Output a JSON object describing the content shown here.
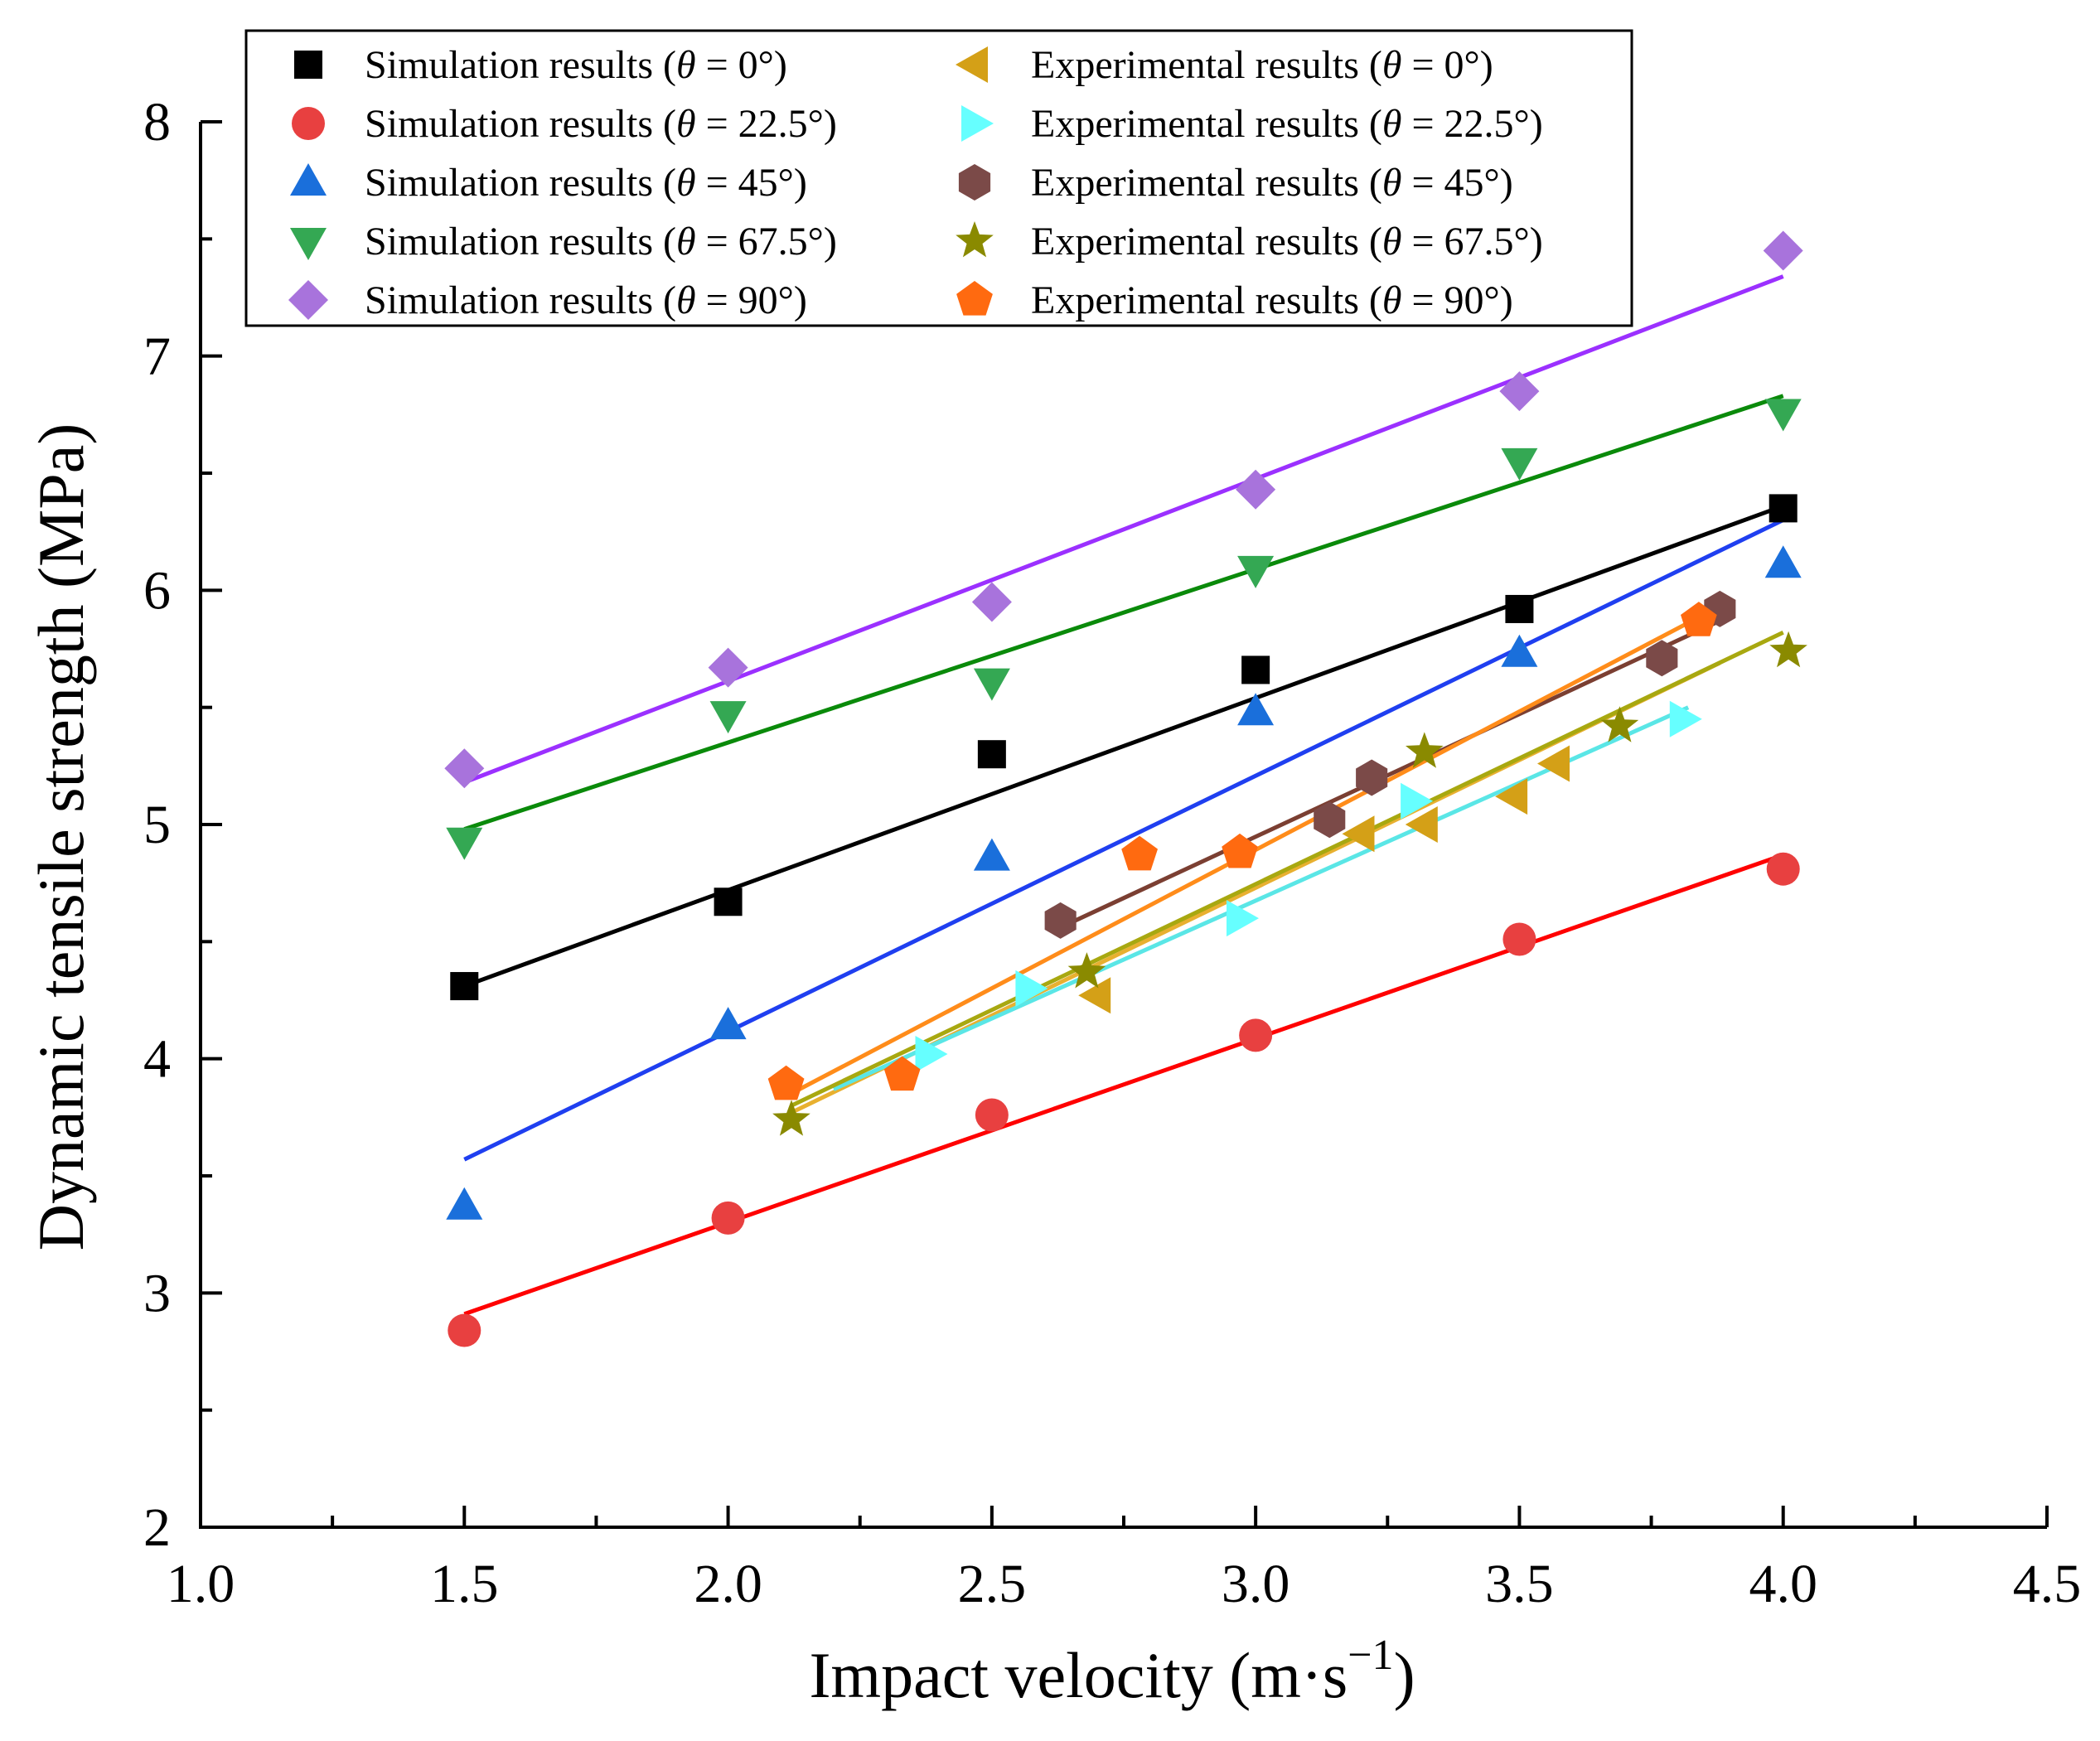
{
  "chart_data": {
    "type": "scatter",
    "xlabel": "Impact velocity (m·s",
    "xlabel_sup": "−1",
    "xlabel_close": ")",
    "ylabel": "Dynamic tensile strength (MPa)",
    "xlim": [
      1.0,
      4.5
    ],
    "ylim": [
      2,
      8
    ],
    "x_ticks": [
      "1.0",
      "1.5",
      "2.0",
      "2.5",
      "3.0",
      "3.5",
      "4.0",
      "4.5"
    ],
    "y_ticks": [
      "2",
      "3",
      "4",
      "5",
      "6",
      "7",
      "8"
    ],
    "legend_position": "top-left",
    "series": [
      {
        "name": "Simulation results (θ = 0°)",
        "prefix": "Simulation results (",
        "theta": "θ",
        "suffix": " = 0°)",
        "marker": "square",
        "color": "#000000",
        "fit_color": "#000000",
        "x": [
          1.5,
          2.0,
          2.5,
          3.0,
          3.5,
          4.0
        ],
        "y": [
          4.31,
          4.67,
          5.3,
          5.66,
          5.92,
          6.35
        ],
        "fit": [
          [
            1.5,
            4.31
          ],
          [
            4.0,
            6.36
          ]
        ]
      },
      {
        "name": "Simulation results (θ = 22.5°)",
        "prefix": "Simulation results (",
        "theta": "θ",
        "suffix": " = 22.5°)",
        "marker": "circle",
        "color": "#e84040",
        "fit_color": "#ff0000",
        "x": [
          1.5,
          2.0,
          2.5,
          3.0,
          3.5,
          4.0
        ],
        "y": [
          2.84,
          3.32,
          3.76,
          4.1,
          4.51,
          4.81
        ],
        "fit": [
          [
            1.5,
            2.91
          ],
          [
            4.0,
            4.87
          ]
        ]
      },
      {
        "name": "Simulation results (θ = 45°)",
        "prefix": "Simulation results (",
        "theta": "θ",
        "suffix": " = 45°)",
        "marker": "triangle-up",
        "color": "#1a6fdb",
        "fit_color": "#1f3ff0",
        "x": [
          1.5,
          2.0,
          2.5,
          3.0,
          3.5,
          4.0
        ],
        "y": [
          3.37,
          4.14,
          4.86,
          5.48,
          5.73,
          6.11
        ],
        "fit": [
          [
            1.5,
            3.57
          ],
          [
            4.0,
            6.3
          ]
        ]
      },
      {
        "name": "Simulation results (θ = 67.5°)",
        "prefix": "Simulation results (",
        "theta": "θ",
        "suffix": " = 67.5°)",
        "marker": "triangle-down",
        "color": "#34a853",
        "fit_color": "#0a8a0a",
        "x": [
          1.5,
          2.0,
          2.5,
          3.0,
          3.5,
          4.0
        ],
        "y": [
          4.93,
          5.47,
          5.61,
          6.09,
          6.55,
          6.76
        ],
        "fit": [
          [
            1.5,
            4.98
          ],
          [
            4.0,
            6.83
          ]
        ]
      },
      {
        "name": "Simulation results (θ = 90°)",
        "prefix": "Simulation results (",
        "theta": "θ",
        "suffix": " = 90°)",
        "marker": "diamond",
        "color": "#a873dc",
        "fit_color": "#9b30ff",
        "x": [
          1.5,
          2.0,
          2.5,
          3.0,
          3.5,
          4.0
        ],
        "y": [
          5.24,
          5.67,
          5.95,
          6.43,
          6.85,
          7.45
        ],
        "fit": [
          [
            1.5,
            5.18
          ],
          [
            4.0,
            7.34
          ]
        ]
      },
      {
        "name": "Experimental results (θ = 0°)",
        "prefix": "Experimental results (",
        "theta": "θ",
        "suffix": " = 0°)",
        "marker": "triangle-left",
        "color": "#d4a017",
        "fit_color": "#e8b030",
        "x": [
          2.7,
          3.2,
          3.32,
          3.49,
          3.57
        ],
        "y": [
          4.27,
          4.96,
          5.0,
          5.12,
          5.26
        ],
        "fit": [
          [
            2.12,
            3.77
          ],
          [
            3.88,
            5.69
          ]
        ]
      },
      {
        "name": "Experimental results (θ = 22.5°)",
        "prefix": "Experimental results (",
        "theta": "θ",
        "suffix": " = 22.5°)",
        "marker": "triangle-right",
        "color": "#66ffff",
        "fit_color": "#5ae6e6",
        "x": [
          2.38,
          2.57,
          2.97,
          3.3,
          3.81
        ],
        "y": [
          4.02,
          4.3,
          4.6,
          5.1,
          5.45
        ],
        "fit": [
          [
            2.2,
            3.87
          ],
          [
            3.82,
            5.5
          ]
        ]
      },
      {
        "name": "Experimental results (θ = 45°)",
        "prefix": "Experimental results (",
        "theta": "θ",
        "suffix": " = 45°)",
        "marker": "hexagon",
        "color": "#7b4a48",
        "fit_color": "#7b3f32",
        "x": [
          2.63,
          3.14,
          3.22,
          3.77,
          3.88
        ],
        "y": [
          4.59,
          5.02,
          5.2,
          5.71,
          5.92
        ],
        "fit": [
          [
            2.62,
            4.55
          ],
          [
            3.89,
            5.88
          ]
        ]
      },
      {
        "name": "Experimental results (θ = 67.5°)",
        "prefix": "Experimental results (",
        "theta": "θ",
        "suffix": " = 67.5°)",
        "marker": "star",
        "color": "#8a8a00",
        "fit_color": "#a8a810",
        "x": [
          2.12,
          2.68,
          3.32,
          3.69,
          4.01
        ],
        "y": [
          3.74,
          4.37,
          5.31,
          5.42,
          5.74
        ],
        "fit": [
          [
            2.12,
            3.8
          ],
          [
            4.0,
            5.82
          ]
        ]
      },
      {
        "name": "Experimental results (θ = 90°)",
        "prefix": "Experimental results (",
        "theta": "θ",
        "suffix": " = 90°)",
        "marker": "pentagon",
        "color": "#ff6a10",
        "fit_color": "#ff8c1a",
        "x": [
          2.11,
          2.33,
          2.78,
          2.97,
          3.84
        ],
        "y": [
          3.89,
          3.93,
          4.87,
          4.88,
          5.87
        ],
        "fit": [
          [
            2.11,
            3.84
          ],
          [
            3.87,
            5.92
          ]
        ]
      }
    ]
  }
}
